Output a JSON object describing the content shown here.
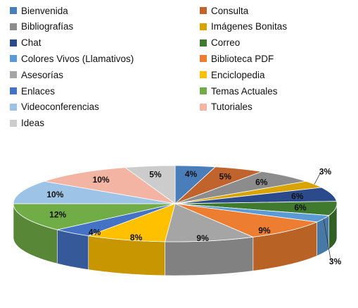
{
  "chart_data": {
    "type": "pie",
    "variant": "3d",
    "legend_position": "top",
    "slices": [
      {
        "name": "Bienvenida",
        "value": 4,
        "label": "4%",
        "color": "#4a7ebb"
      },
      {
        "name": "Consulta",
        "value": 5,
        "label": "5%",
        "color": "#c0632d"
      },
      {
        "name": "Bibliografías",
        "value": 6,
        "label": "6%",
        "color": "#8c8c8c"
      },
      {
        "name": "Imágenes Bonitas",
        "value": 3,
        "label": "3%",
        "color": "#d9a300"
      },
      {
        "name": "Chat",
        "value": 6,
        "label": "6%",
        "color": "#2a4a8c"
      },
      {
        "name": "Correo",
        "value": 6,
        "label": "6%",
        "color": "#3f7a2e"
      },
      {
        "name": "Colores Vivos (Llamativos)",
        "value": 3,
        "label": "3%",
        "color": "#5a9bd5"
      },
      {
        "name": "Biblioteca PDF",
        "value": 9,
        "label": "9%",
        "color": "#ed7d31"
      },
      {
        "name": "Asesorías",
        "value": 9,
        "label": "9%",
        "color": "#a5a5a5"
      },
      {
        "name": "Enciclopedia",
        "value": 8,
        "label": "8%",
        "color": "#ffc000"
      },
      {
        "name": "Enlaces",
        "value": 4,
        "label": "4%",
        "color": "#4472c4"
      },
      {
        "name": "Temas Actuales",
        "value": 12,
        "label": "12%",
        "color": "#70ad47"
      },
      {
        "name": "Videoconferencias",
        "value": 10,
        "label": "10%",
        "color": "#9dc3e6"
      },
      {
        "name": "Tutoriales",
        "value": 10,
        "label": "10%",
        "color": "#f4b4a4"
      },
      {
        "name": "Ideas",
        "value": 5,
        "label": "5%",
        "color": "#cccccc"
      }
    ]
  }
}
